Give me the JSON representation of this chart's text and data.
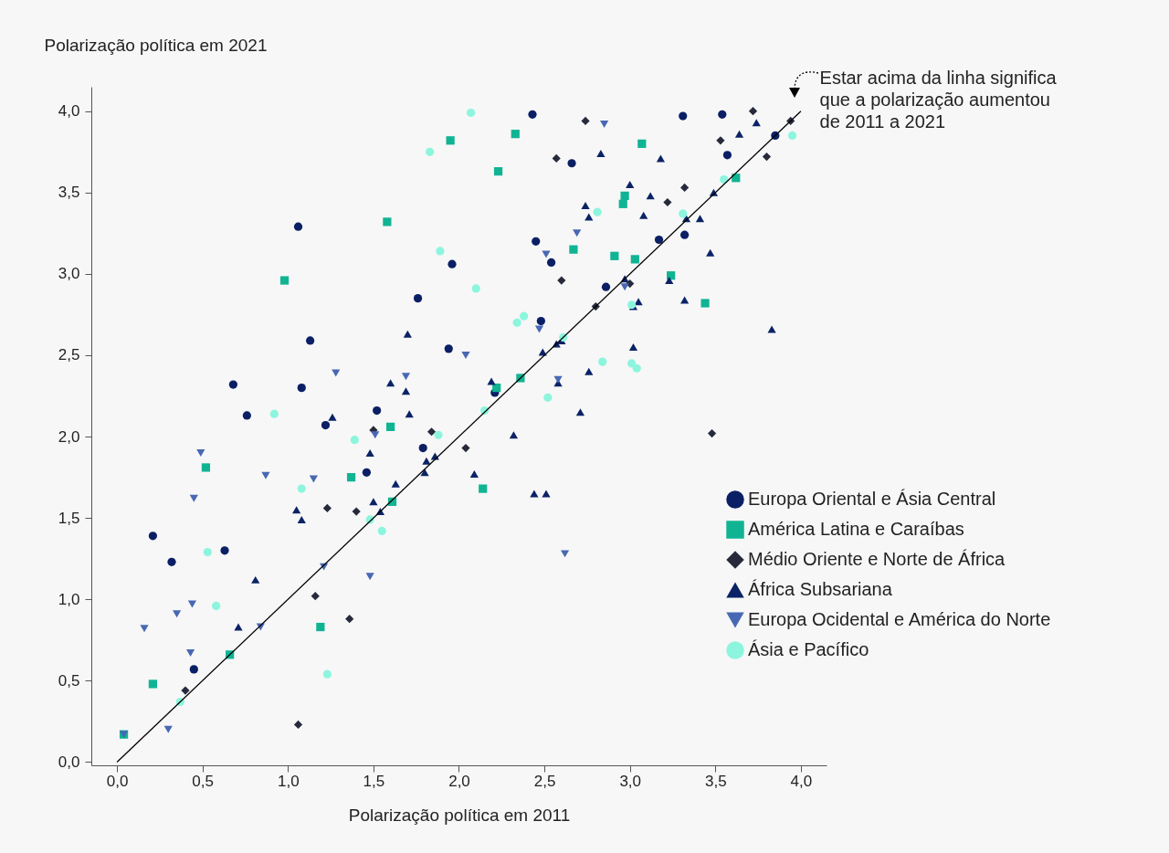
{
  "chart_data": {
    "type": "scatter",
    "xlabel": "Polarização política em 2011",
    "ylabel": "Polarização política em 2021",
    "xlim": [
      -0.15,
      4.15
    ],
    "ylim": [
      -0.02,
      4.15
    ],
    "xticks": [
      {
        "value": 0,
        "label": "0,0"
      },
      {
        "value": 0.5,
        "label": "0,5"
      },
      {
        "value": 1,
        "label": "1,0"
      },
      {
        "value": 1.5,
        "label": "1,5"
      },
      {
        "value": 2,
        "label": "2,0"
      },
      {
        "value": 2.5,
        "label": "2,5"
      },
      {
        "value": 3,
        "label": "3,0"
      },
      {
        "value": 3.5,
        "label": "3,5"
      },
      {
        "value": 4,
        "label": "4,0"
      }
    ],
    "yticks": [
      {
        "value": 0,
        "label": "0,0"
      },
      {
        "value": 0.5,
        "label": "0,5"
      },
      {
        "value": 1,
        "label": "1,0"
      },
      {
        "value": 1.5,
        "label": "1,5"
      },
      {
        "value": 2,
        "label": "2,0"
      },
      {
        "value": 2.5,
        "label": "2,5"
      },
      {
        "value": 3,
        "label": "3,0"
      },
      {
        "value": 3.5,
        "label": "3,5"
      },
      {
        "value": 4,
        "label": "4,0"
      }
    ],
    "grid": false,
    "legend": "right",
    "annotations": [
      {
        "text": "Estar acima da linha significa\nque a polarização aumentou\nde 2011 a 2021",
        "x": 3.95,
        "y": 3.95
      }
    ],
    "series": [
      {
        "name": "Europa Oriental e Ásia Central",
        "color": "#0a1f64",
        "marker": "circle",
        "x": [
          0.21,
          0.32,
          0.45,
          0.63,
          0.68,
          0.76,
          1.06,
          1.08,
          1.13,
          1.22,
          1.46,
          1.52,
          1.76,
          1.79,
          1.94,
          1.96,
          2.21,
          2.43,
          2.45,
          2.48,
          2.54,
          2.66,
          2.86,
          3.17,
          3.31,
          3.32,
          3.54,
          3.57,
          3.85
        ],
        "values": [
          1.39,
          1.23,
          0.57,
          1.3,
          2.32,
          2.13,
          3.29,
          2.3,
          2.59,
          2.07,
          1.78,
          2.16,
          2.85,
          1.93,
          2.54,
          3.06,
          2.27,
          3.98,
          3.2,
          2.71,
          3.07,
          3.68,
          2.92,
          3.21,
          3.97,
          3.24,
          3.98,
          3.73,
          3.85
        ]
      },
      {
        "name": "América Latina e Caraíbas",
        "color": "#10b493",
        "marker": "square",
        "x": [
          0.04,
          0.21,
          0.52,
          0.66,
          0.98,
          1.19,
          1.37,
          1.58,
          1.6,
          1.61,
          1.95,
          2.14,
          2.22,
          2.23,
          2.33,
          2.36,
          2.67,
          2.91,
          2.96,
          2.97,
          3.03,
          3.07,
          3.24,
          3.44,
          3.62
        ],
        "values": [
          0.17,
          0.48,
          1.81,
          0.66,
          2.96,
          0.83,
          1.75,
          3.32,
          2.06,
          1.6,
          3.82,
          1.68,
          2.3,
          3.63,
          3.86,
          2.36,
          3.15,
          3.11,
          3.43,
          3.48,
          3.09,
          3.8,
          2.99,
          2.82,
          3.59
        ]
      },
      {
        "name": "Médio Oriente e Norte de África",
        "color": "#262a3b",
        "marker": "diamond",
        "x": [
          0.4,
          1.06,
          1.16,
          1.23,
          1.36,
          1.4,
          1.5,
          1.84,
          2.04,
          2.57,
          2.6,
          2.74,
          2.8,
          3.0,
          3.22,
          3.32,
          3.48,
          3.53,
          3.72,
          3.8,
          3.94
        ],
        "values": [
          0.44,
          0.23,
          1.02,
          1.56,
          0.88,
          1.54,
          2.04,
          2.03,
          1.93,
          3.71,
          2.96,
          3.94,
          2.8,
          2.94,
          3.44,
          3.53,
          2.02,
          3.82,
          4.0,
          3.72,
          3.94
        ]
      },
      {
        "name": "África Subsariana",
        "color": "#0b2366",
        "marker": "triangle",
        "x": [
          0.71,
          0.81,
          1.05,
          1.08,
          1.26,
          1.48,
          1.5,
          1.54,
          1.6,
          1.63,
          1.69,
          1.7,
          1.71,
          1.8,
          1.81,
          1.86,
          2.09,
          2.19,
          2.32,
          2.44,
          2.49,
          2.51,
          2.57,
          2.58,
          2.6,
          2.71,
          2.74,
          2.76,
          2.76,
          2.83,
          2.97,
          3.0,
          3.02,
          3.02,
          3.05,
          3.08,
          3.12,
          3.18,
          3.23,
          3.32,
          3.33,
          3.41,
          3.47,
          3.49,
          3.64,
          3.74,
          3.83
        ],
        "values": [
          0.83,
          1.12,
          1.55,
          1.49,
          2.12,
          1.9,
          1.6,
          1.54,
          2.33,
          1.71,
          2.28,
          2.63,
          2.14,
          1.78,
          1.85,
          1.88,
          1.77,
          2.34,
          2.01,
          1.65,
          2.52,
          1.65,
          2.57,
          2.33,
          2.59,
          2.15,
          3.42,
          2.4,
          3.35,
          3.74,
          2.97,
          3.55,
          2.55,
          2.8,
          2.83,
          3.36,
          3.48,
          3.71,
          2.96,
          2.84,
          3.34,
          3.34,
          3.13,
          3.5,
          3.86,
          3.93,
          2.66
        ]
      },
      {
        "name": "Europa Ocidental e América do Norte",
        "color": "#4868b3",
        "marker": "triangle-down",
        "x": [
          0.04,
          0.16,
          0.3,
          0.35,
          0.43,
          0.44,
          0.45,
          0.49,
          0.84,
          0.87,
          1.15,
          1.21,
          1.28,
          1.48,
          1.51,
          1.69,
          2.04,
          2.47,
          2.51,
          2.58,
          2.62,
          2.69,
          2.85,
          2.97
        ],
        "values": [
          0.17,
          0.82,
          0.2,
          0.91,
          0.67,
          0.97,
          1.62,
          1.9,
          0.83,
          1.76,
          1.74,
          1.2,
          2.39,
          1.14,
          2.01,
          2.37,
          2.5,
          2.66,
          3.12,
          2.35,
          1.28,
          3.25,
          3.92,
          2.92
        ]
      },
      {
        "name": "Ásia e Pacífico",
        "color": "#8df5de",
        "marker": "circle",
        "x": [
          0.37,
          0.53,
          0.58,
          0.92,
          1.08,
          1.23,
          1.39,
          1.48,
          1.55,
          1.83,
          1.88,
          1.89,
          2.07,
          2.1,
          2.15,
          2.34,
          2.38,
          2.52,
          2.61,
          2.81,
          2.84,
          3.01,
          3.01,
          3.04,
          3.31,
          3.55,
          3.95
        ],
        "values": [
          0.37,
          1.29,
          0.96,
          2.14,
          1.68,
          0.54,
          1.98,
          1.49,
          1.42,
          3.75,
          2.01,
          3.14,
          3.99,
          2.91,
          2.16,
          2.7,
          2.74,
          2.24,
          2.61,
          3.38,
          2.46,
          2.81,
          2.45,
          2.42,
          3.37,
          3.58,
          3.85
        ]
      },
      {
        "type": "line",
        "color": "#000000",
        "x": [
          0,
          4
        ],
        "values": [
          0,
          4
        ]
      }
    ]
  }
}
